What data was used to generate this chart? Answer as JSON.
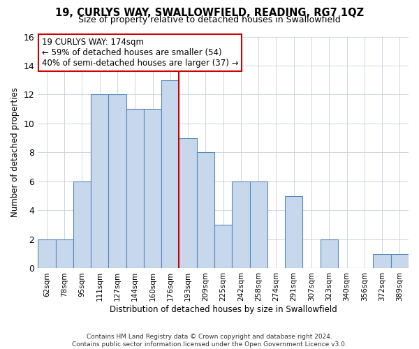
{
  "title": "19, CURLYS WAY, SWALLOWFIELD, READING, RG7 1QZ",
  "subtitle": "Size of property relative to detached houses in Swallowfield",
  "xlabel": "Distribution of detached houses by size in Swallowfield",
  "ylabel": "Number of detached properties",
  "categories": [
    "62sqm",
    "78sqm",
    "95sqm",
    "111sqm",
    "127sqm",
    "144sqm",
    "160sqm",
    "176sqm",
    "193sqm",
    "209sqm",
    "225sqm",
    "242sqm",
    "258sqm",
    "274sqm",
    "291sqm",
    "307sqm",
    "323sqm",
    "340sqm",
    "356sqm",
    "372sqm",
    "389sqm"
  ],
  "values": [
    2,
    2,
    6,
    12,
    12,
    11,
    11,
    13,
    9,
    8,
    3,
    6,
    6,
    0,
    5,
    0,
    2,
    0,
    0,
    1,
    1
  ],
  "bar_color": "#c8d8ec",
  "bar_edge_color": "#5588bb",
  "vline_x": 7.5,
  "vline_color": "#cc0000",
  "annotation_line1": "19 CURLYS WAY: 174sqm",
  "annotation_line2": "← 59% of detached houses are smaller (54)",
  "annotation_line3": "40% of semi-detached houses are larger (37) →",
  "annotation_box_color": "#ffffff",
  "annotation_box_edge": "#cc0000",
  "ylim": [
    0,
    16
  ],
  "yticks": [
    0,
    2,
    4,
    6,
    8,
    10,
    12,
    14,
    16
  ],
  "footer": "Contains HM Land Registry data © Crown copyright and database right 2024.\nContains public sector information licensed under the Open Government Licence v3.0.",
  "bg_color": "#ffffff",
  "grid_color": "#c8d0dc"
}
